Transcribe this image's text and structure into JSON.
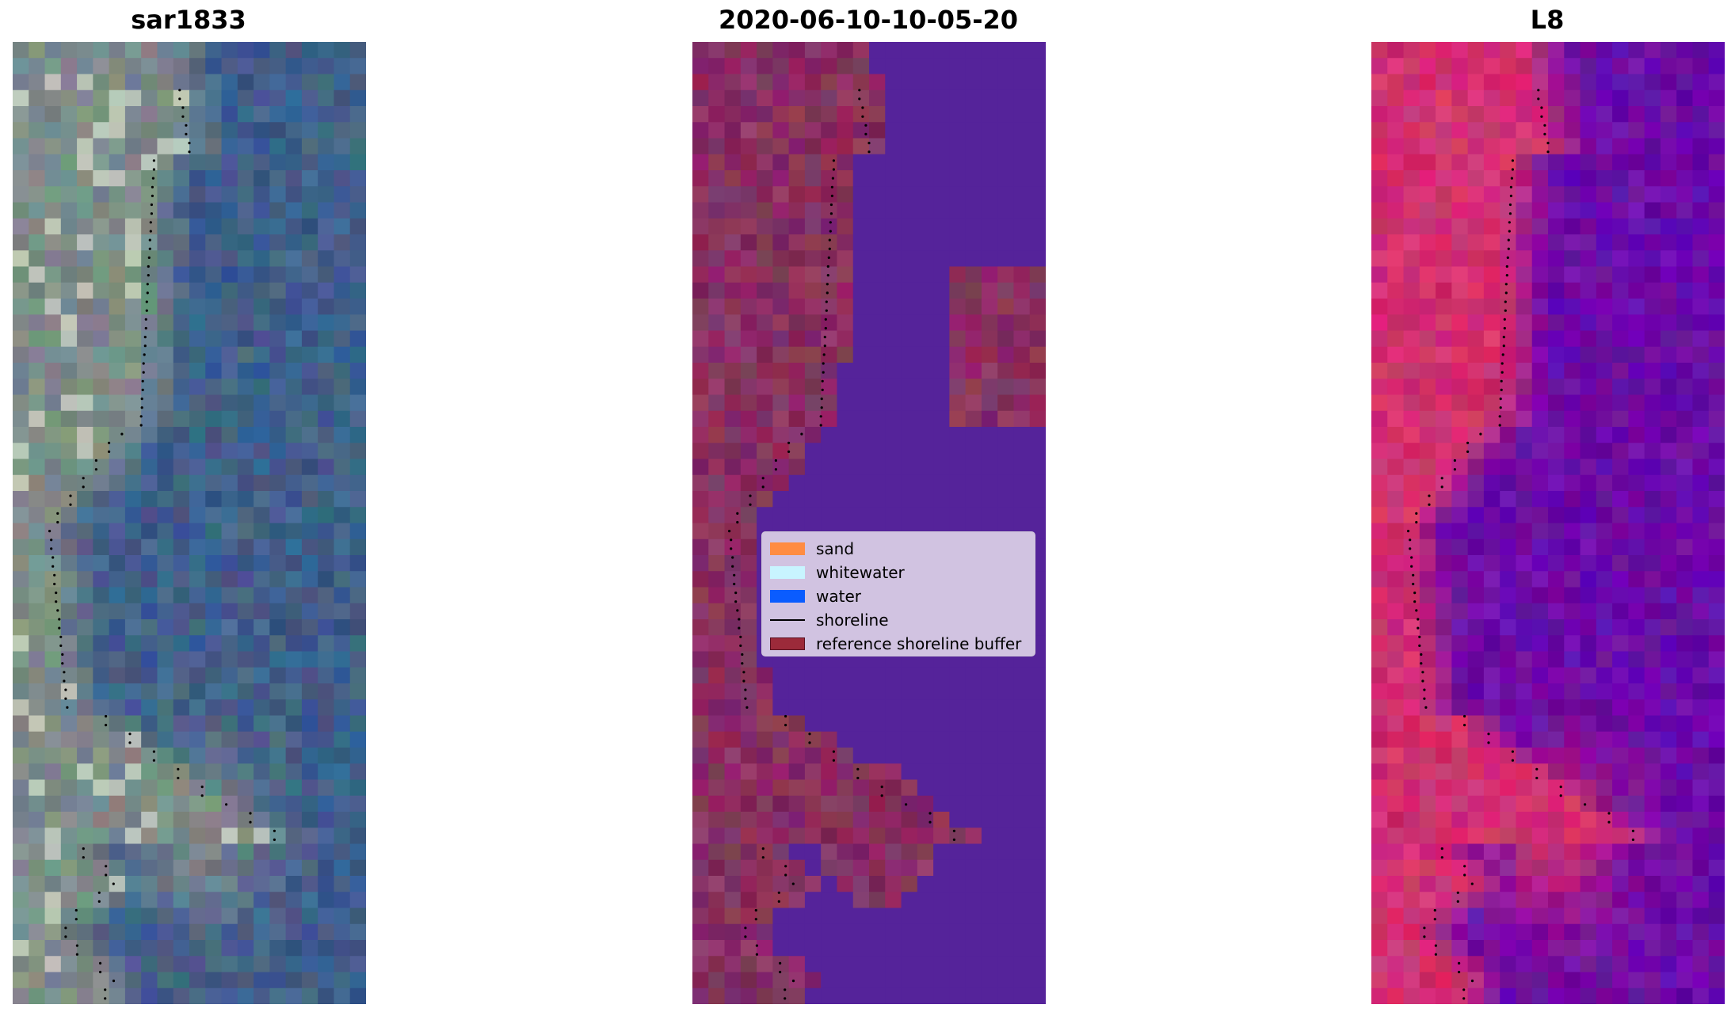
{
  "panels": [
    {
      "title": "sar1833",
      "kind": "rgb"
    },
    {
      "title": "2020-06-10-10-05-20",
      "kind": "classified"
    },
    {
      "title": "L8",
      "kind": "false-color"
    }
  ],
  "legend": {
    "items": [
      {
        "label": "sand",
        "type": "patch",
        "color": "#ff8c42"
      },
      {
        "label": "whitewater",
        "type": "patch",
        "color": "#c8f4ff"
      },
      {
        "label": "water",
        "type": "patch",
        "color": "#0a5cff"
      },
      {
        "label": "shoreline",
        "type": "line",
        "color": "#000000"
      },
      {
        "label": "reference shoreline buffer",
        "type": "patch",
        "color": "#9c2a3a"
      }
    ]
  },
  "colors": {
    "rgb_water": "#3f5f8a",
    "rgb_land": "#7e8c88",
    "classified_water": "#55239a",
    "classified_buffer": "#883060",
    "l8_land": "#d23070",
    "l8_water": "#6a0aa8",
    "shoreline": "#000000"
  }
}
